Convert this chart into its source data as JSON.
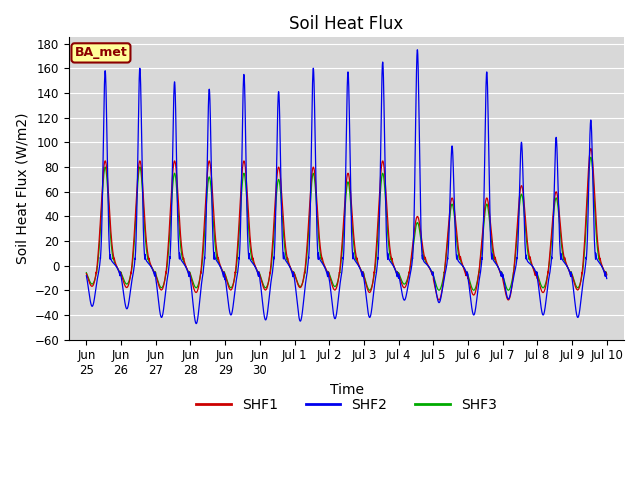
{
  "title": "Soil Heat Flux",
  "ylabel": "Soil Heat Flux (W/m2)",
  "xlabel": "Time",
  "site_label": "BA_met",
  "ylim": [
    -60,
    185
  ],
  "yticks": [
    -60,
    -40,
    -20,
    0,
    20,
    40,
    60,
    80,
    100,
    120,
    140,
    160,
    180
  ],
  "line_colors": {
    "SHF1": "#cc0000",
    "SHF2": "#0000ee",
    "SHF3": "#00aa00"
  },
  "background_color": "#d8d8d8",
  "fig_background": "#ffffff",
  "title_fontsize": 12,
  "label_fontsize": 10,
  "tick_fontsize": 8.5,
  "shf1_peaks": [
    85,
    85,
    85,
    85,
    85,
    80,
    80,
    75,
    85,
    40,
    55,
    55,
    65,
    60,
    95
  ],
  "shf2_peaks": [
    158,
    160,
    149,
    143,
    155,
    141,
    160,
    157,
    165,
    175,
    97,
    157,
    100,
    104,
    118
  ],
  "shf3_peaks": [
    80,
    80,
    75,
    72,
    75,
    70,
    75,
    68,
    75,
    35,
    50,
    50,
    58,
    55,
    88
  ],
  "shf1_troughs": [
    -17,
    -18,
    -20,
    -22,
    -20,
    -20,
    -18,
    -20,
    -22,
    -18,
    -28,
    -24,
    -28,
    -22,
    -20
  ],
  "shf2_troughs": [
    -33,
    -35,
    -42,
    -47,
    -40,
    -44,
    -45,
    -43,
    -42,
    -28,
    -30,
    -40,
    -27,
    -40,
    -42
  ],
  "shf3_troughs": [
    -15,
    -15,
    -18,
    -18,
    -18,
    -18,
    -17,
    -17,
    -20,
    -15,
    -20,
    -20,
    -20,
    -18,
    -18
  ],
  "tick_positions": [
    0,
    1,
    2,
    3,
    4,
    5,
    6,
    7,
    8,
    9,
    10,
    11,
    12,
    13,
    14,
    15
  ],
  "tick_labels": [
    "Jun\n25",
    "Jun\n26",
    "Jun\n27",
    "Jun\n28",
    "Jun\n29",
    "Jun\n30",
    "Jul 1",
    "Jul 2",
    "Jul 3",
    "Jul 4",
    "Jul 5",
    "Jul 6",
    "Jul 7",
    "Jul 8",
    "Jul 9",
    "Jul 10"
  ]
}
